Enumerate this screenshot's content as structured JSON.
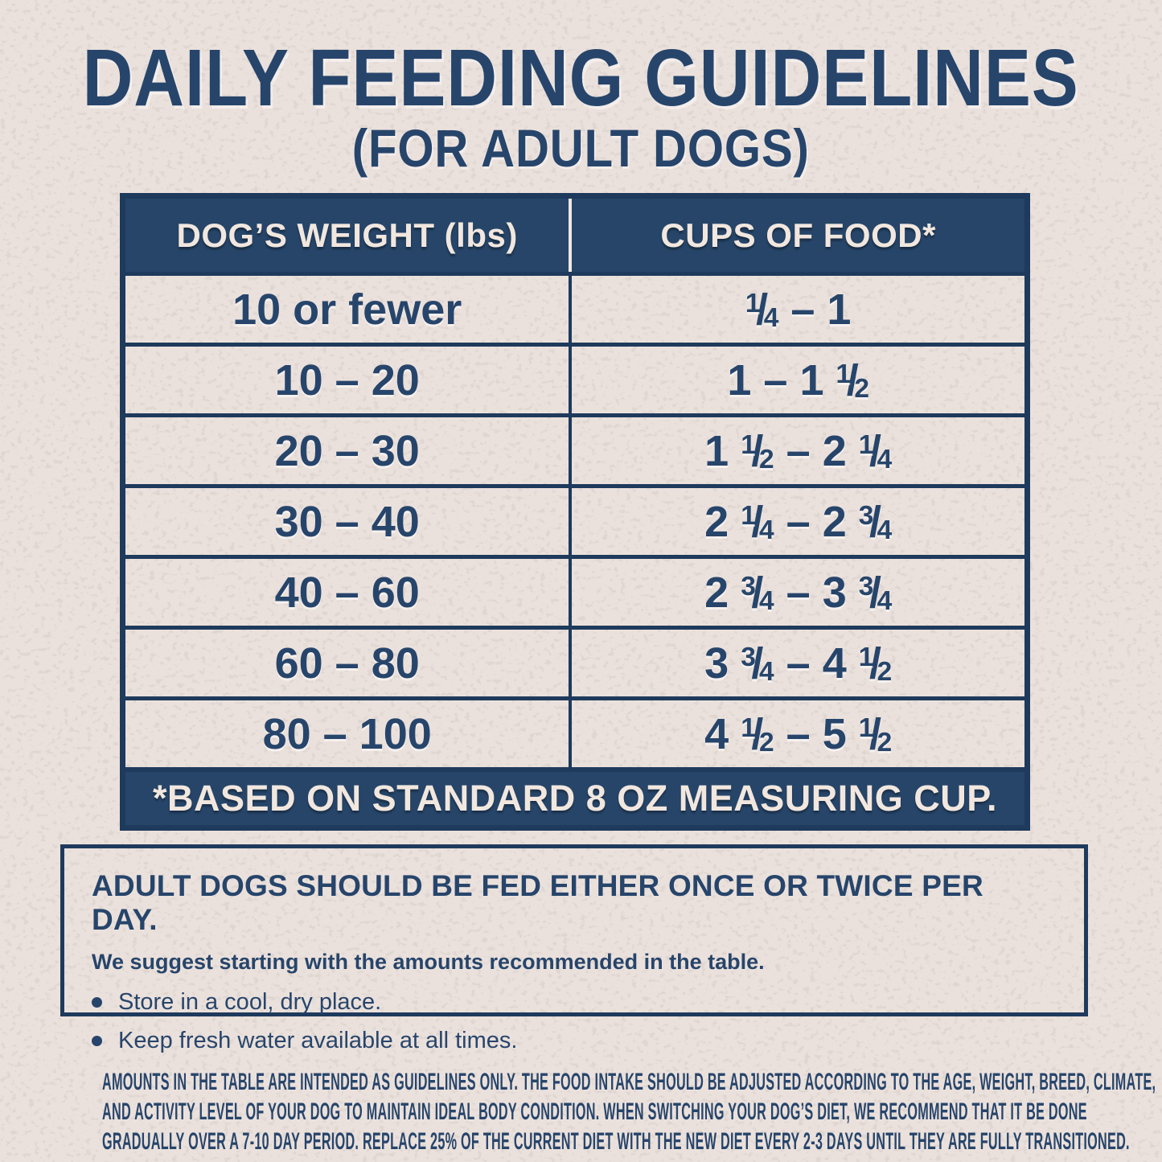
{
  "page": {
    "title": "DAILY FEEDING GUIDELINES",
    "subtitle": "(FOR ADULT DOGS)"
  },
  "table": {
    "columns": [
      "DOG’S WEIGHT (lbs)",
      "CUPS OF FOOD*"
    ],
    "rows": [
      {
        "weight": "10 or fewer",
        "cups": "¼ – 1"
      },
      {
        "weight": "10 – 20",
        "cups": "1 – 1 ½"
      },
      {
        "weight": "20 – 30",
        "cups": "1 ½ – 2 ¼"
      },
      {
        "weight": "30 – 40",
        "cups": "2 ¼ – 2 ¾"
      },
      {
        "weight": "40 – 60",
        "cups": "2 ¾ – 3 ¾"
      },
      {
        "weight": "60 – 80",
        "cups": "3 ¾ – 4 ½"
      },
      {
        "weight": "80 – 100",
        "cups": "4 ½ – 5 ½"
      }
    ],
    "footnote": "*BASED ON STANDARD 8 OZ MEASURING CUP."
  },
  "info_box": {
    "headline": "ADULT DOGS SHOULD BE FED EITHER ONCE OR TWICE PER DAY.",
    "subline": "We suggest starting with the amounts recommended in the table.",
    "bullets": [
      "Store in a cool, dry place.",
      "Keep fresh water available at all times."
    ]
  },
  "fine_print": {
    "lines": [
      "AMOUNTS IN THE TABLE ARE INTENDED AS GUIDELINES ONLY. THE FOOD INTAKE SHOULD BE ADJUSTED ACCORDING TO THE AGE, WEIGHT, BREED, CLIMATE,",
      "AND ACTIVITY LEVEL OF YOUR DOG TO MAINTAIN IDEAL BODY CONDITION. WHEN SWITCHING YOUR DOG’S DIET, WE RECOMMEND THAT IT BE DONE",
      "GRADUALLY OVER A 7-10 DAY PERIOD. REPLACE 25% OF THE CURRENT DIET WITH THE NEW DIET EVERY 2-3 DAYS UNTIL THEY ARE FULLY TRANSITIONED."
    ]
  },
  "colors": {
    "navy": "#264569",
    "ink": "#27456b",
    "cream_text": "#f1e7df",
    "background": "#ebe1dc"
  }
}
